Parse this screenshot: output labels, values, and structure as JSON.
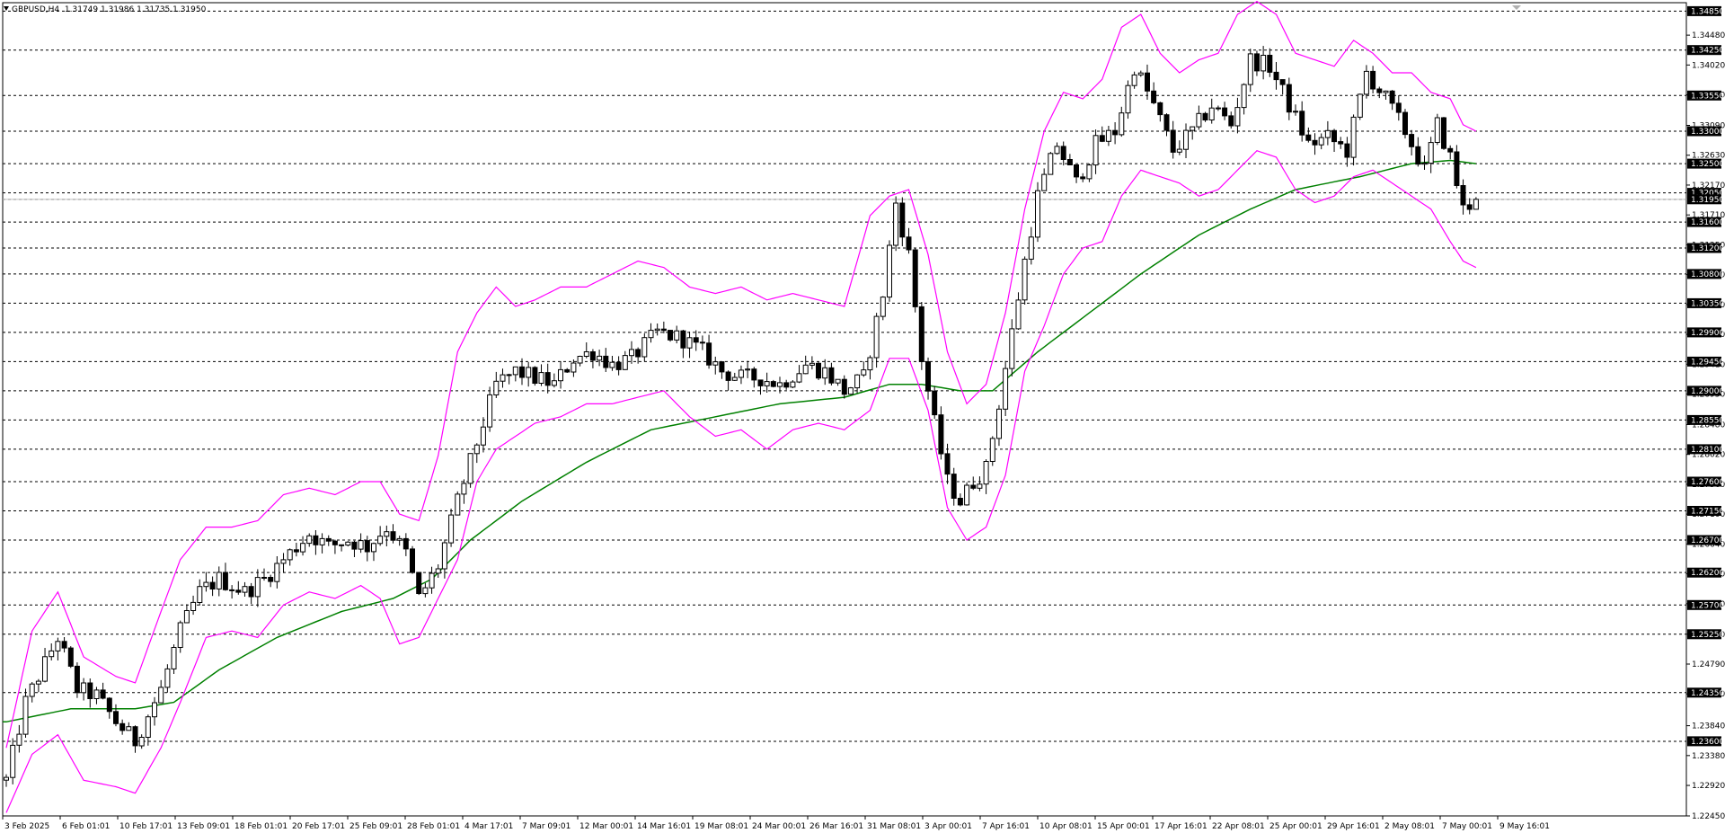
{
  "header": {
    "symbol_timeframe": "GBPUSD,H4",
    "ohlc": "1.31749 1.31986 1.31735 1.31950"
  },
  "colors": {
    "background": "#ffffff",
    "candle": "#000000",
    "bollinger_band": "#ff00ff",
    "moving_average": "#008000",
    "level_line": "#000000",
    "level_label_bg": "#000000",
    "level_label_text": "#ffffff",
    "price_line": "#c0c0c0"
  },
  "chart_data": {
    "type": "candlestick",
    "symbol": "GBPUSD",
    "timeframe": "H4",
    "current_price": 1.3195,
    "y_range": [
      1.2245,
      1.3498
    ],
    "x_ticks": [
      "3 Feb 2025",
      "6 Feb 01:01",
      "10 Feb 17:01",
      "13 Feb 09:01",
      "18 Feb 01:01",
      "20 Feb 17:01",
      "25 Feb 09:01",
      "28 Feb 01:01",
      "4 Mar 17:01",
      "7 Mar 09:01",
      "12 Mar 00:01",
      "14 Mar 16:01",
      "19 Mar 08:01",
      "24 Mar 00:01",
      "26 Mar 16:01",
      "31 Mar 08:01",
      "3 Apr 00:01",
      "7 Apr 16:01",
      "10 Apr 08:01",
      "15 Apr 00:01",
      "17 Apr 16:01",
      "22 Apr 08:01",
      "25 Apr 00:01",
      "29 Apr 16:01",
      "2 May 08:01",
      "7 May 00:01",
      "9 May 16:01"
    ],
    "y_ticks": [
      "1.34480",
      "1.34020",
      "1.33560",
      "1.33090",
      "1.32630",
      "1.32170",
      "1.31710",
      "1.31250",
      "1.30790",
      "1.30330",
      "1.29870",
      "1.29410",
      "1.28950",
      "1.28480",
      "1.28020",
      "1.27560",
      "1.27100",
      "1.26640",
      "1.26180",
      "1.25720",
      "1.25250",
      "1.24790",
      "1.24330",
      "1.23840",
      "1.23380",
      "1.22920",
      "1.22450"
    ],
    "levels": [
      "1.34850",
      "1.34250",
      "1.33550",
      "1.33000",
      "1.32500",
      "1.32050",
      "1.31950",
      "1.31600",
      "1.31200",
      "1.30800",
      "1.30350",
      "1.29900",
      "1.29450",
      "1.29000",
      "1.28550",
      "1.28100",
      "1.27600",
      "1.27150",
      "1.26700",
      "1.26200",
      "1.25700",
      "1.25250",
      "1.24350",
      "1.23600"
    ],
    "series": [
      {
        "name": "",
        "type": "candlestick"
      },
      {
        "name": "",
        "type": "bollinger_bands"
      },
      {
        "name": "",
        "type": "moving_average"
      }
    ],
    "price_path": [
      [
        0,
        1.23
      ],
      [
        3,
        1.242
      ],
      [
        8,
        1.252
      ],
      [
        11,
        1.244
      ],
      [
        14,
        1.243
      ],
      [
        17,
        1.239
      ],
      [
        20,
        1.236
      ],
      [
        24,
        1.244
      ],
      [
        27,
        1.253
      ],
      [
        30,
        1.259
      ],
      [
        33,
        1.261
      ],
      [
        37,
        1.259
      ],
      [
        40,
        1.261
      ],
      [
        44,
        1.265
      ],
      [
        47,
        1.268
      ],
      [
        50,
        1.266
      ],
      [
        53,
        1.267
      ],
      [
        56,
        1.266
      ],
      [
        59,
        1.269
      ],
      [
        62,
        1.265
      ],
      [
        64,
        1.258
      ],
      [
        67,
        1.263
      ],
      [
        70,
        1.273
      ],
      [
        73,
        1.282
      ],
      [
        76,
        1.291
      ],
      [
        79,
        1.293
      ],
      [
        82,
        1.292
      ],
      [
        85,
        1.291
      ],
      [
        88,
        1.295
      ],
      [
        91,
        1.296
      ],
      [
        94,
        1.294
      ],
      [
        97,
        1.295
      ],
      [
        101,
        1.299
      ],
      [
        105,
        1.298
      ],
      [
        108,
        1.296
      ],
      [
        111,
        1.293
      ],
      [
        114,
        1.292
      ],
      [
        117,
        1.292
      ],
      [
        120,
        1.291
      ],
      [
        124,
        1.294
      ],
      [
        127,
        1.293
      ],
      [
        130,
        1.29
      ],
      [
        133,
        1.292
      ],
      [
        136,
        1.305
      ],
      [
        138,
        1.319
      ],
      [
        140,
        1.311
      ],
      [
        142,
        1.295
      ],
      [
        144,
        1.285
      ],
      [
        146,
        1.276
      ],
      [
        148,
        1.273
      ],
      [
        150,
        1.276
      ],
      [
        152,
        1.278
      ],
      [
        154,
        1.288
      ],
      [
        156,
        1.299
      ],
      [
        158,
        1.31
      ],
      [
        160,
        1.32
      ],
      [
        163,
        1.328
      ],
      [
        166,
        1.322
      ],
      [
        169,
        1.328
      ],
      [
        172,
        1.33
      ],
      [
        175,
        1.34
      ],
      [
        178,
        1.334
      ],
      [
        181,
        1.327
      ],
      [
        184,
        1.33
      ],
      [
        187,
        1.334
      ],
      [
        190,
        1.331
      ],
      [
        193,
        1.341
      ],
      [
        196,
        1.34
      ],
      [
        199,
        1.334
      ],
      [
        202,
        1.328
      ],
      [
        205,
        1.329
      ],
      [
        208,
        1.327
      ],
      [
        211,
        1.339
      ],
      [
        214,
        1.335
      ],
      [
        217,
        1.33
      ],
      [
        220,
        1.324
      ],
      [
        222,
        1.331
      ],
      [
        224,
        1.326
      ],
      [
        226,
        1.318
      ],
      [
        228,
        1.3195
      ]
    ],
    "bollinger_path": [
      [
        0,
        1.235,
        1.225
      ],
      [
        4,
        1.253,
        1.234
      ],
      [
        8,
        1.259,
        1.237
      ],
      [
        12,
        1.249,
        1.23
      ],
      [
        17,
        1.246,
        1.229
      ],
      [
        20,
        1.245,
        1.228
      ],
      [
        24,
        1.256,
        1.235
      ],
      [
        27,
        1.264,
        1.242
      ],
      [
        31,
        1.269,
        1.252
      ],
      [
        35,
        1.269,
        1.253
      ],
      [
        39,
        1.27,
        1.252
      ],
      [
        43,
        1.274,
        1.257
      ],
      [
        47,
        1.275,
        1.259
      ],
      [
        51,
        1.274,
        1.258
      ],
      [
        55,
        1.276,
        1.26
      ],
      [
        58,
        1.276,
        1.258
      ],
      [
        61,
        1.271,
        1.251
      ],
      [
        64,
        1.27,
        1.252
      ],
      [
        67,
        1.28,
        1.258
      ],
      [
        70,
        1.296,
        1.264
      ],
      [
        73,
        1.302,
        1.276
      ],
      [
        76,
        1.306,
        1.281
      ],
      [
        79,
        1.303,
        1.283
      ],
      [
        82,
        1.304,
        1.285
      ],
      [
        86,
        1.306,
        1.286
      ],
      [
        90,
        1.306,
        1.288
      ],
      [
        94,
        1.308,
        1.288
      ],
      [
        98,
        1.31,
        1.289
      ],
      [
        102,
        1.309,
        1.29
      ],
      [
        106,
        1.306,
        1.286
      ],
      [
        110,
        1.305,
        1.283
      ],
      [
        114,
        1.306,
        1.284
      ],
      [
        118,
        1.304,
        1.281
      ],
      [
        122,
        1.305,
        1.284
      ],
      [
        126,
        1.304,
        1.285
      ],
      [
        130,
        1.303,
        1.284
      ],
      [
        134,
        1.317,
        1.287
      ],
      [
        137,
        1.32,
        1.295
      ],
      [
        140,
        1.321,
        1.295
      ],
      [
        143,
        1.311,
        1.287
      ],
      [
        146,
        1.296,
        1.272
      ],
      [
        149,
        1.288,
        1.267
      ],
      [
        152,
        1.291,
        1.269
      ],
      [
        155,
        1.302,
        1.277
      ],
      [
        158,
        1.318,
        1.293
      ],
      [
        161,
        1.33,
        1.3
      ],
      [
        164,
        1.336,
        1.308
      ],
      [
        167,
        1.335,
        1.312
      ],
      [
        170,
        1.338,
        1.313
      ],
      [
        173,
        1.346,
        1.32
      ],
      [
        176,
        1.348,
        1.324
      ],
      [
        179,
        1.342,
        1.323
      ],
      [
        182,
        1.339,
        1.322
      ],
      [
        185,
        1.341,
        1.32
      ],
      [
        188,
        1.342,
        1.321
      ],
      [
        191,
        1.348,
        1.324
      ],
      [
        194,
        1.35,
        1.327
      ],
      [
        197,
        1.348,
        1.326
      ],
      [
        200,
        1.342,
        1.321
      ],
      [
        203,
        1.341,
        1.319
      ],
      [
        206,
        1.34,
        1.32
      ],
      [
        209,
        1.344,
        1.323
      ],
      [
        212,
        1.342,
        1.324
      ],
      [
        215,
        1.339,
        1.322
      ],
      [
        218,
        1.339,
        1.32
      ],
      [
        221,
        1.336,
        1.318
      ],
      [
        224,
        1.335,
        1.313
      ],
      [
        226,
        1.331,
        1.31
      ],
      [
        228,
        1.33,
        1.309
      ]
    ],
    "ma_path": [
      [
        0,
        1.239
      ],
      [
        10,
        1.241
      ],
      [
        20,
        1.241
      ],
      [
        26,
        1.242
      ],
      [
        33,
        1.247
      ],
      [
        42,
        1.252
      ],
      [
        52,
        1.256
      ],
      [
        60,
        1.258
      ],
      [
        66,
        1.261
      ],
      [
        72,
        1.267
      ],
      [
        80,
        1.273
      ],
      [
        90,
        1.279
      ],
      [
        100,
        1.284
      ],
      [
        110,
        1.286
      ],
      [
        120,
        1.288
      ],
      [
        130,
        1.289
      ],
      [
        137,
        1.291
      ],
      [
        142,
        1.291
      ],
      [
        148,
        1.29
      ],
      [
        153,
        1.29
      ],
      [
        160,
        1.296
      ],
      [
        168,
        1.302
      ],
      [
        176,
        1.308
      ],
      [
        185,
        1.314
      ],
      [
        193,
        1.318
      ],
      [
        200,
        1.321
      ],
      [
        210,
        1.323
      ],
      [
        218,
        1.325
      ],
      [
        224,
        1.3255
      ],
      [
        228,
        1.325
      ]
    ]
  }
}
